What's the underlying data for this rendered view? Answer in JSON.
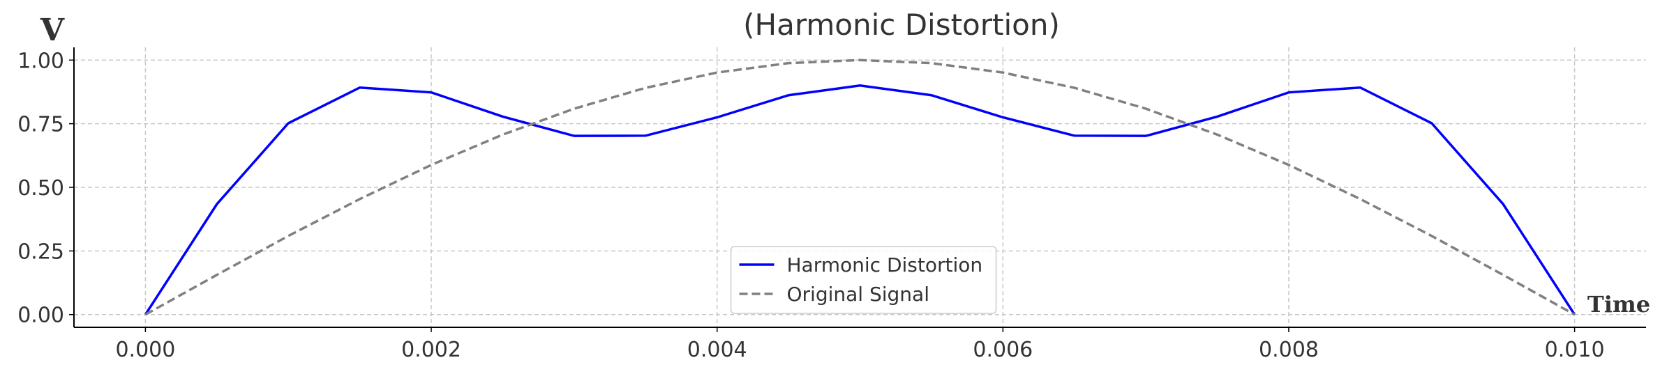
{
  "chart_data": {
    "type": "line",
    "title": "(Harmonic Distortion)",
    "y_label": "V",
    "x_label": "Time",
    "x": [
      0,
      0.0005,
      0.001,
      0.0015,
      0.002,
      0.0025,
      0.003,
      0.0035,
      0.004,
      0.0045,
      0.005,
      0.0055,
      0.006,
      0.0065,
      0.007,
      0.0075,
      0.008,
      0.0085,
      0.009,
      0.0095,
      0.01
    ],
    "series": [
      {
        "name": "Harmonic Distortion",
        "color": "#0000ff",
        "dash": "solid",
        "values": [
          0,
          0.434,
          0.752,
          0.892,
          0.873,
          0.778,
          0.702,
          0.703,
          0.775,
          0.862,
          0.9,
          0.862,
          0.775,
          0.703,
          0.702,
          0.778,
          0.873,
          0.892,
          0.752,
          0.434,
          0
        ]
      },
      {
        "name": "Original Signal",
        "color": "#808080",
        "dash": "dashed",
        "values": [
          0,
          0.156,
          0.309,
          0.454,
          0.588,
          0.707,
          0.809,
          0.891,
          0.951,
          0.988,
          1,
          0.988,
          0.951,
          0.891,
          0.809,
          0.707,
          0.588,
          0.454,
          0.309,
          0.156,
          0
        ]
      }
    ],
    "xlim": [
      -0.0005,
      0.0105
    ],
    "ylim": [
      -0.05,
      1.05
    ],
    "xticks": [
      {
        "value": 0,
        "label": "0.000"
      },
      {
        "value": 0.002,
        "label": "0.002"
      },
      {
        "value": 0.004,
        "label": "0.004"
      },
      {
        "value": 0.006,
        "label": "0.006"
      },
      {
        "value": 0.008,
        "label": "0.008"
      },
      {
        "value": 0.01,
        "label": "0.010"
      }
    ],
    "yticks": [
      {
        "value": 0,
        "label": "0.00"
      },
      {
        "value": 0.25,
        "label": "0.25"
      },
      {
        "value": 0.5,
        "label": "0.50"
      },
      {
        "value": 0.75,
        "label": "0.75"
      },
      {
        "value": 1,
        "label": "1.00"
      }
    ],
    "grid": true,
    "legend": "lower center"
  }
}
